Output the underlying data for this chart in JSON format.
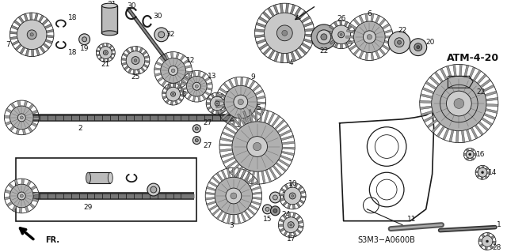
{
  "bg_color": "#ffffff",
  "diagram_label": "ATM-4-20",
  "diagram_code": "S3M3−A0600B",
  "fr_label": "FR.",
  "line_color": "#1a1a1a",
  "text_color": "#111111",
  "shaft_color": "#555555",
  "gear_body": "#c8c8c8",
  "gear_teeth": "#888888",
  "gear_hub": "#aaaaaa"
}
